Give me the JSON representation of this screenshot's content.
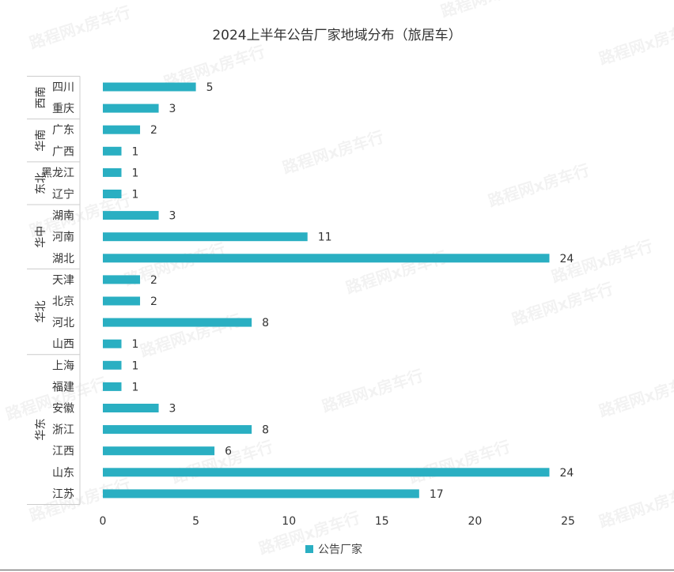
{
  "chart_data": {
    "type": "bar",
    "orientation": "horizontal",
    "title": "2024上半年公告厂家地域分布（旅居车）",
    "xlabel": "",
    "ylabel": "",
    "xlim": [
      0,
      25
    ],
    "x_ticks": [
      0,
      5,
      10,
      15,
      20,
      25
    ],
    "grid": false,
    "legend_position": "bottom",
    "bar_color": "#2AAFC2",
    "series": [
      {
        "name": "公告厂家"
      }
    ],
    "groups": [
      {
        "region": "西南",
        "items": [
          {
            "province": "四川",
            "value": 5
          },
          {
            "province": "重庆",
            "value": 3
          }
        ]
      },
      {
        "region": "华南",
        "items": [
          {
            "province": "广东",
            "value": 2
          },
          {
            "province": "广西",
            "value": 1
          }
        ]
      },
      {
        "region": "东北",
        "items": [
          {
            "province": "黑龙江",
            "value": 1
          },
          {
            "province": "辽宁",
            "value": 1
          }
        ]
      },
      {
        "region": "华中",
        "items": [
          {
            "province": "湖南",
            "value": 3
          },
          {
            "province": "河南",
            "value": 11
          },
          {
            "province": "湖北",
            "value": 24
          }
        ]
      },
      {
        "region": "华北",
        "items": [
          {
            "province": "天津",
            "value": 2
          },
          {
            "province": "北京",
            "value": 2
          },
          {
            "province": "河北",
            "value": 8
          },
          {
            "province": "山西",
            "value": 1
          }
        ]
      },
      {
        "region": "华东",
        "items": [
          {
            "province": "上海",
            "value": 1
          },
          {
            "province": "福建",
            "value": 1
          },
          {
            "province": "安徽",
            "value": 3
          },
          {
            "province": "浙江",
            "value": 8
          },
          {
            "province": "江西",
            "value": 6
          },
          {
            "province": "山东",
            "value": 24
          },
          {
            "province": "江苏",
            "value": 17
          }
        ]
      }
    ]
  },
  "watermark": "路程网x房车行"
}
